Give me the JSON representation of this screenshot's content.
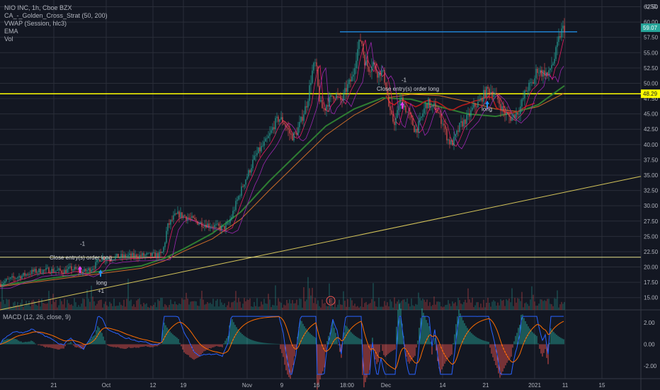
{
  "header": {
    "symbol_line": "NIO INC, 1h, Cboe BZX",
    "indicators": [
      "CA_-_Golden_Cross_Strat (50, 200)",
      "VWAP (Session, hlc3)",
      "EMA",
      "Vol"
    ],
    "currency": "USD"
  },
  "macd_label": "MACD (12, 26, close, 9)",
  "colors": {
    "background": "#131722",
    "grid": "#2a2e39",
    "up": "#26a69a",
    "down": "#ef5350",
    "yellow": "#ffff00",
    "blue": "#2196f3",
    "sma50": "#cc6d29",
    "sma200": "#2e7d32",
    "vwap": "#9c27b0",
    "red_ma": "#b71c1c",
    "trendline": "#d4c45a",
    "macd": "#2962ff",
    "signal": "#ff6d00",
    "price_badge": "#26a69a",
    "level_badge": "#ffff00"
  },
  "chart_data": {
    "type": "candlestick",
    "x_ticks": [
      "21",
      "Oct",
      "12",
      "19",
      "Nov",
      "9",
      "16",
      "18:00",
      "Dec",
      "14",
      "21",
      "2021",
      "11",
      "15"
    ],
    "y_ticks": [
      "62.50",
      "60.00",
      "57.50",
      "55.00",
      "52.50",
      "50.00",
      "47.50",
      "45.00",
      "42.50",
      "40.00",
      "37.50",
      "35.00",
      "32.50",
      "30.00",
      "27.50",
      "25.00",
      "22.50",
      "20.00",
      "17.50",
      "15.00"
    ],
    "ylim": [
      13,
      63.6
    ],
    "last_price": "59.07",
    "level_price": "48.29",
    "price_path": [
      [
        0,
        17.3
      ],
      [
        10,
        17.8
      ],
      [
        22,
        18.3
      ],
      [
        32,
        18.6
      ],
      [
        45,
        19.2
      ],
      [
        58,
        19.4
      ],
      [
        70,
        19.5
      ],
      [
        80,
        19.4
      ],
      [
        90,
        19.3
      ],
      [
        100,
        19.7
      ],
      [
        110,
        19.5
      ],
      [
        118,
        19.2
      ],
      [
        126,
        19.6
      ],
      [
        134,
        20.2
      ],
      [
        140,
        21.3
      ],
      [
        144,
        21.5
      ],
      [
        150,
        21.4
      ],
      [
        160,
        21.6
      ],
      [
        172,
        21.7
      ],
      [
        182,
        21.8
      ],
      [
        192,
        21.8
      ],
      [
        204,
        21.9
      ],
      [
        216,
        21.9
      ],
      [
        228,
        22.0
      ],
      [
        232,
        23.5
      ],
      [
        236,
        26.5
      ],
      [
        240,
        27.2
      ],
      [
        246,
        28.2
      ],
      [
        252,
        28.6
      ],
      [
        258,
        28.4
      ],
      [
        266,
        28.1
      ],
      [
        274,
        27.6
      ],
      [
        282,
        27.2
      ],
      [
        290,
        27.0
      ],
      [
        298,
        26.8
      ],
      [
        306,
        26.6
      ],
      [
        314,
        26.3
      ],
      [
        322,
        26.8
      ],
      [
        328,
        28.6
      ],
      [
        334,
        30.6
      ],
      [
        340,
        32.4
      ],
      [
        346,
        34.2
      ],
      [
        352,
        35.6
      ],
      [
        358,
        37.5
      ],
      [
        364,
        38.7
      ],
      [
        370,
        39.6
      ],
      [
        376,
        40.5
      ],
      [
        382,
        41.8
      ],
      [
        388,
        43.5
      ],
      [
        394,
        44.3
      ],
      [
        400,
        43.8
      ],
      [
        406,
        42.5
      ],
      [
        412,
        41.2
      ],
      [
        418,
        41.8
      ],
      [
        424,
        43.5
      ],
      [
        430,
        45.6
      ],
      [
        434,
        47.0
      ],
      [
        438,
        50.0
      ],
      [
        442,
        52.5
      ],
      [
        446,
        53.3
      ],
      [
        450,
        48.0
      ],
      [
        454,
        46.0
      ],
      [
        458,
        45.8
      ],
      [
        462,
        46.8
      ],
      [
        466,
        47.3
      ],
      [
        470,
        48.2
      ],
      [
        476,
        48.0
      ],
      [
        482,
        47.0
      ],
      [
        486,
        48.2
      ],
      [
        490,
        49.3
      ],
      [
        494,
        50.2
      ],
      [
        498,
        51.0
      ],
      [
        502,
        54.0
      ],
      [
        506,
        56.0
      ],
      [
        510,
        57.5
      ],
      [
        514,
        54.0
      ],
      [
        518,
        53.0
      ],
      [
        522,
        52.3
      ],
      [
        526,
        53.6
      ],
      [
        530,
        52.4
      ],
      [
        534,
        51.5
      ],
      [
        538,
        52.0
      ],
      [
        542,
        51.2
      ],
      [
        546,
        49.0
      ],
      [
        550,
        45.3
      ],
      [
        554,
        44.0
      ],
      [
        558,
        43.6
      ],
      [
        562,
        45.6
      ],
      [
        566,
        47.5
      ],
      [
        570,
        46.6
      ],
      [
        574,
        45.5
      ],
      [
        578,
        44.6
      ],
      [
        582,
        43.6
      ],
      [
        586,
        42.3
      ],
      [
        590,
        42.8
      ],
      [
        594,
        44.0
      ],
      [
        598,
        45.5
      ],
      [
        602,
        46.6
      ],
      [
        606,
        46.8
      ],
      [
        610,
        45.6
      ],
      [
        614,
        46.4
      ],
      [
        618,
        45.3
      ],
      [
        622,
        44.2
      ],
      [
        626,
        43.6
      ],
      [
        630,
        41.6
      ],
      [
        634,
        40.5
      ],
      [
        638,
        40.1
      ],
      [
        642,
        40.9
      ],
      [
        646,
        42.0
      ],
      [
        650,
        43.2
      ],
      [
        654,
        43.6
      ],
      [
        658,
        44.1
      ],
      [
        662,
        44.6
      ],
      [
        666,
        45.5
      ],
      [
        670,
        46.3
      ],
      [
        674,
        46.6
      ],
      [
        678,
        47.0
      ],
      [
        682,
        48.0
      ],
      [
        686,
        48.6
      ],
      [
        690,
        49.0
      ],
      [
        694,
        48.6
      ],
      [
        698,
        48.2
      ],
      [
        702,
        47.6
      ],
      [
        706,
        46.6
      ],
      [
        710,
        45.6
      ],
      [
        714,
        45.0
      ],
      [
        718,
        44.6
      ],
      [
        722,
        44.3
      ],
      [
        726,
        44.8
      ],
      [
        730,
        45.2
      ],
      [
        734,
        45.8
      ],
      [
        738,
        47.2
      ],
      [
        742,
        48.6
      ],
      [
        746,
        49.4
      ],
      [
        750,
        49.8
      ],
      [
        754,
        50.3
      ],
      [
        758,
        52.4
      ],
      [
        762,
        52.0
      ],
      [
        766,
        51.6
      ],
      [
        770,
        51.9
      ],
      [
        774,
        51.0
      ],
      [
        778,
        52.9
      ],
      [
        782,
        53.6
      ],
      [
        786,
        55.6
      ],
      [
        790,
        57.6
      ],
      [
        794,
        58.8
      ],
      [
        797,
        59.07
      ]
    ],
    "series": [
      {
        "name": "CA_-_Golden_Cross_Strat (50, 200)",
        "values": [
          [
            0,
            17.0
          ],
          [
            100,
            18.6
          ],
          [
            200,
            20.2
          ],
          [
            232,
            21.4
          ],
          [
            260,
            23.0
          ],
          [
            300,
            25.5
          ],
          [
            340,
            29.0
          ],
          [
            380,
            34.0
          ],
          [
            420,
            38.5
          ],
          [
            460,
            43.0
          ],
          [
            500,
            45.8
          ],
          [
            540,
            47.6
          ],
          [
            580,
            47.4
          ],
          [
            620,
            46.2
          ],
          [
            660,
            45.0
          ],
          [
            700,
            44.6
          ],
          [
            730,
            45.3
          ],
          [
            760,
            46.5
          ],
          [
            797,
            49.6
          ]
        ]
      },
      {
        "name": "EMA",
        "values": [
          [
            0,
            16.8
          ],
          [
            100,
            18.3
          ],
          [
            200,
            19.8
          ],
          [
            232,
            21.0
          ],
          [
            260,
            22.6
          ],
          [
            300,
            24.6
          ],
          [
            340,
            27.8
          ],
          [
            380,
            32.5
          ],
          [
            420,
            37.0
          ],
          [
            460,
            41.5
          ],
          [
            500,
            44.8
          ],
          [
            545,
            47.6
          ],
          [
            580,
            48.2
          ],
          [
            620,
            48.0
          ],
          [
            660,
            47.0
          ],
          [
            700,
            45.8
          ],
          [
            730,
            45.4
          ],
          [
            760,
            46.2
          ],
          [
            797,
            48.4
          ]
        ]
      }
    ],
    "trendlines": [
      {
        "from": [
          0,
          13.0
        ],
        "to": [
          905,
          34.8
        ]
      },
      {
        "type": "horizontal",
        "y": 48.29
      },
      {
        "type": "horizontal",
        "y": 21.6
      },
      {
        "type": "horizontal",
        "y": 58.4,
        "from_x": 480,
        "to_x": 815
      }
    ],
    "annotations": [
      {
        "text": "-1",
        "x": 113,
        "y": 23.5
      },
      {
        "text": "Close entry(s) order long",
        "x": 70,
        "y": 21.2
      },
      {
        "text": "long",
        "x": 136,
        "y": 17.1
      },
      {
        "text": "+1",
        "x": 138,
        "y": 15.8
      },
      {
        "text": "-1",
        "x": 567,
        "y": 50.2
      },
      {
        "text": "Close entry(s) order long",
        "x": 532,
        "y": 48.8
      },
      {
        "text": "long",
        "x": 680,
        "y": 45.5
      }
    ],
    "volume": {
      "marker_label": "E"
    },
    "macd": {
      "y_ticks": [
        "2.00",
        "0.00",
        "-2.00"
      ],
      "ylim": [
        -3.2,
        3.0
      ]
    }
  }
}
